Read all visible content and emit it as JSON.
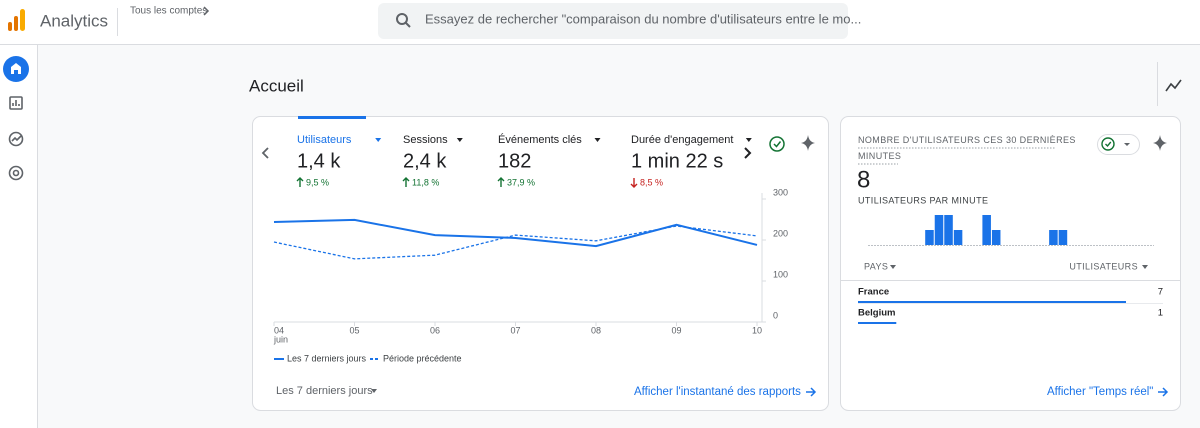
{
  "header": {
    "app_name": "Analytics",
    "account_link": "Tous les comptes",
    "search_placeholder": "Essayez de rechercher \"comparaison du nombre d'utilisateurs entre le mo..."
  },
  "page_title": "Accueil",
  "overview_card": {
    "metrics": [
      {
        "label": "Utilisateurs",
        "value": "1,4 k",
        "change": "9,5 %",
        "direction": "up",
        "selected": true
      },
      {
        "label": "Sessions",
        "value": "2,4 k",
        "change": "11,8 %",
        "direction": "up",
        "selected": false
      },
      {
        "label": "Événements clés",
        "value": "182",
        "change": "37,9 %",
        "direction": "up",
        "selected": false
      },
      {
        "label": "Durée d'engagement",
        "value": "1 min 22 s",
        "change": "8,5 %",
        "direction": "down",
        "selected": false
      }
    ],
    "chart_data": {
      "type": "line",
      "categories": [
        "04",
        "05",
        "06",
        "07",
        "08",
        "09",
        "10"
      ],
      "month_label": "juin",
      "ylim": [
        0,
        300
      ],
      "yticks": [
        0,
        100,
        200,
        300
      ],
      "series": [
        {
          "name": "Les 7 derniers jours",
          "color": "#1a73e8",
          "style": "solid",
          "values": [
            244,
            249,
            212,
            205,
            185,
            237,
            188
          ]
        },
        {
          "name": "Période précédente",
          "color": "#1a73e8",
          "style": "dashed",
          "values": [
            195,
            154,
            163,
            212,
            198,
            234,
            210
          ]
        }
      ]
    },
    "date_range": "Les 7 derniers jours",
    "link": "Afficher l'instantané des rapports"
  },
  "realtime_card": {
    "title": "NOMBRE D'UTILISATEURS CES 30 DERNIÈRES MINUTES",
    "value": 8,
    "subtitle": "UTILISATEURS PAR MINUTE",
    "chart_data": {
      "type": "bar",
      "color": "#1a73e8",
      "ylim": [
        0,
        2
      ],
      "values": [
        0,
        0,
        0,
        0,
        0,
        0,
        1,
        2,
        2,
        1,
        0,
        0,
        2,
        1,
        0,
        0,
        0,
        0,
        0,
        1,
        1,
        0,
        0,
        0,
        0,
        0,
        0,
        0,
        0,
        0
      ]
    },
    "table": {
      "columns": [
        "PAYS",
        "UTILISATEURS"
      ],
      "rows": [
        [
          "France",
          7
        ],
        [
          "Belgium",
          1
        ]
      ]
    },
    "link": "Afficher \"Temps réel\""
  }
}
